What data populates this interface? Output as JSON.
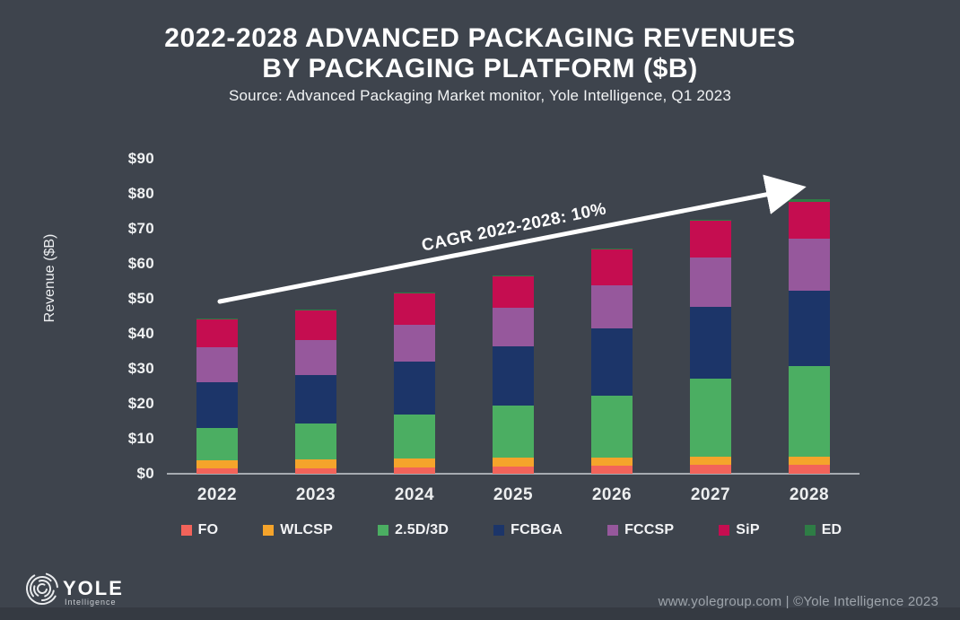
{
  "header": {
    "title_line1": "2022-2028 ADVANCED PACKAGING REVENUES",
    "title_line2": "BY PACKAGING PLATFORM ($B)",
    "source": "Source: Advanced Packaging Market monitor, Yole Intelligence, Q1 2023"
  },
  "chart_data": {
    "type": "bar",
    "stacked": true,
    "title": "2022-2028 Advanced Packaging Revenues by Packaging Platform ($B)",
    "xlabel": "",
    "ylabel": "Revenue ($B)",
    "ylim": [
      0,
      90
    ],
    "ytick_step": 10,
    "ytick_prefix": "$",
    "grid": false,
    "legend_position": "bottom",
    "categories": [
      "2022",
      "2023",
      "2024",
      "2025",
      "2026",
      "2027",
      "2028"
    ],
    "series": [
      {
        "name": "FO",
        "color": "#F2635A",
        "values": [
          1.5,
          1.6,
          1.8,
          2.0,
          2.3,
          2.6,
          2.6
        ]
      },
      {
        "name": "WLCSP",
        "color": "#F5A42B",
        "values": [
          2.4,
          2.4,
          2.6,
          2.6,
          2.3,
          2.3,
          2.3
        ]
      },
      {
        "name": "2.5D/3D",
        "color": "#4BAE62",
        "values": [
          9.2,
          10.4,
          12.5,
          14.9,
          17.7,
          22.3,
          25.9
        ]
      },
      {
        "name": "FCBGA",
        "color": "#1C3569",
        "values": [
          13.1,
          13.8,
          15.2,
          16.9,
          19.2,
          20.5,
          21.4
        ]
      },
      {
        "name": "FCCSP",
        "color": "#96589C",
        "values": [
          10.0,
          10.0,
          10.5,
          11.0,
          12.3,
          14.2,
          15.1
        ]
      },
      {
        "name": "SiP",
        "color": "#C50D50",
        "values": [
          7.9,
          8.5,
          9.0,
          9.1,
          10.4,
          10.5,
          10.5
        ]
      },
      {
        "name": "ED",
        "color": "#2E7D45",
        "values": [
          0.2,
          0.2,
          0.2,
          0.2,
          0.2,
          0.2,
          0.6
        ]
      }
    ],
    "annotation": {
      "text": "CAGR 2022-2028: 10%",
      "arrow_color": "#FFFFFF"
    }
  },
  "footer": {
    "logo_text": "YOLE",
    "logo_subtext": "Intelligence",
    "credit": "www.yolegroup.com | ©Yole Intelligence 2023"
  },
  "colors": {
    "background": "#3E444D",
    "axis": "#A6ABB1",
    "text": "#FFFFFF",
    "footer_text": "#9EA4AB"
  }
}
